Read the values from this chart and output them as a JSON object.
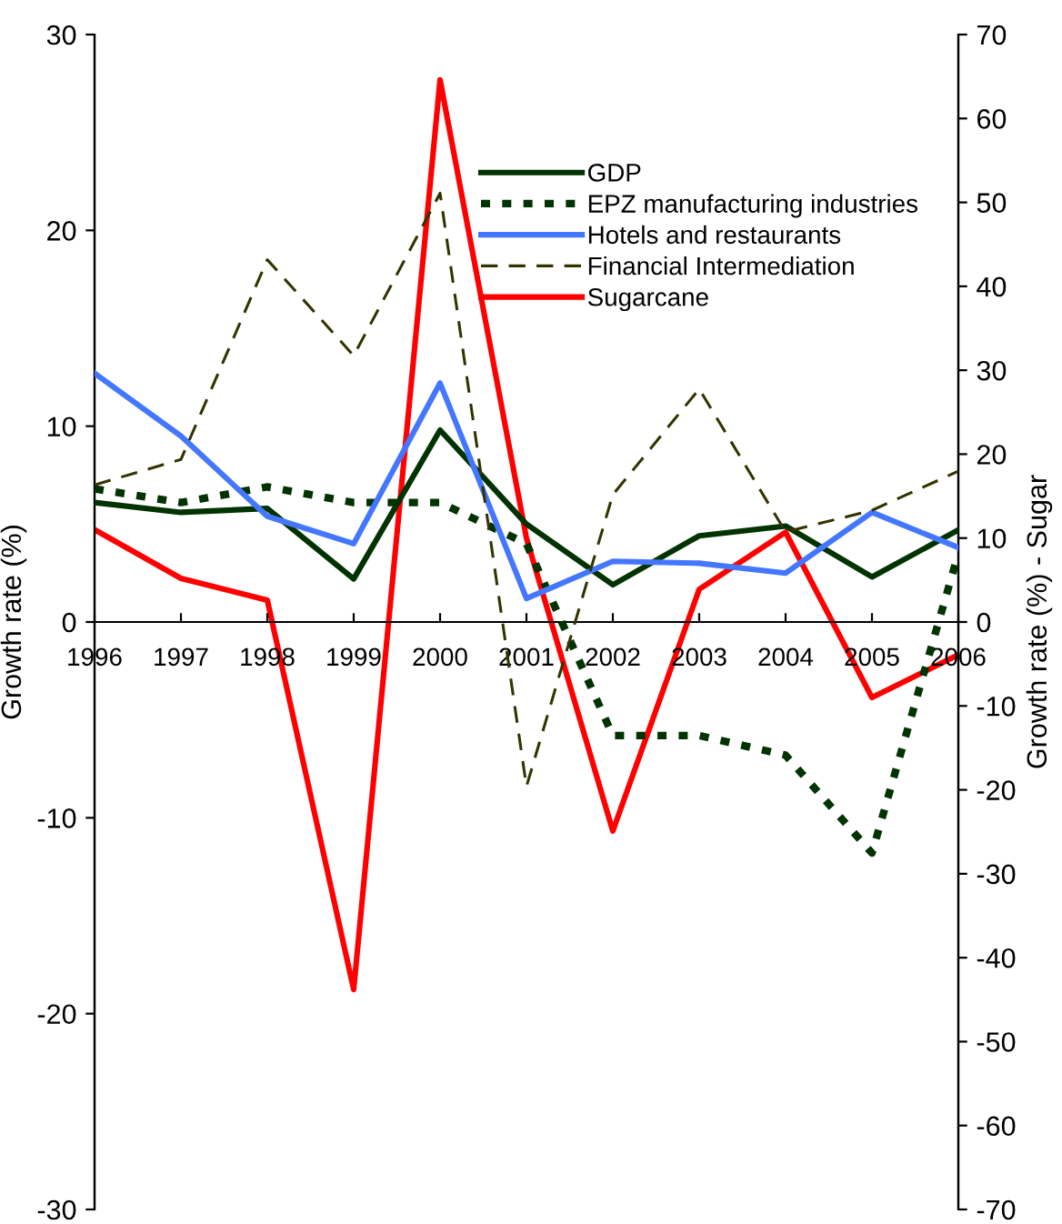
{
  "chart_data": {
    "type": "line",
    "ylabel": "Growth rate (%)",
    "y2label": "Growth rate (%) - Sugar",
    "x": [
      1996,
      1997,
      1998,
      1999,
      2000,
      2001,
      2002,
      2003,
      2004,
      2005,
      2006
    ],
    "xlim": [
      1996,
      2006
    ],
    "xticks": [
      1996,
      1997,
      1998,
      1999,
      2000,
      2001,
      2002,
      2003,
      2004,
      2005,
      2006
    ],
    "ylim": [
      -30,
      30
    ],
    "yticks": [
      -30,
      -20,
      -10,
      0,
      10,
      20,
      30
    ],
    "y2lim": [
      -70,
      70
    ],
    "y2ticks": [
      -70,
      -60,
      -50,
      -40,
      -30,
      -20,
      -10,
      0,
      10,
      20,
      30,
      40,
      50,
      60,
      70
    ],
    "grid": false,
    "legend": "top right",
    "marker": "none",
    "series": [
      {
        "name": "GDP",
        "color": "#003300",
        "line_style": "solid",
        "values": [
          6.1,
          5.6,
          5.8,
          2.2,
          9.8,
          5.0,
          1.9,
          4.4,
          4.9,
          2.3,
          4.7
        ]
      },
      {
        "name": "EPZ manufacturing industries",
        "color": "#003300",
        "line_style": "dotted",
        "values": [
          6.8,
          6.1,
          6.9,
          6.1,
          6.1,
          4.0,
          -5.8,
          -5.8,
          -6.8,
          -11.8,
          3.5
        ]
      },
      {
        "name": "Hotels and restaurants",
        "color": "#4477ff",
        "line_style": "solid",
        "values": [
          12.7,
          9.5,
          5.4,
          4.0,
          12.2,
          1.2,
          3.1,
          3.0,
          2.5,
          5.6,
          3.8
        ]
      },
      {
        "name": "Financial Intermediation",
        "color": "#333300",
        "line_style": "dashed",
        "values": [
          7.0,
          8.3,
          18.5,
          13.6,
          21.9,
          -8.4,
          6.5,
          11.9,
          4.6,
          5.7,
          7.7
        ]
      },
      {
        "name": "Sugarcane",
        "color": "#ff0000",
        "line_style": "solid",
        "axis": "y2",
        "values": [
          11.0,
          5.2,
          2.6,
          -43.8,
          64.6,
          10.0,
          -24.9,
          3.9,
          10.7,
          -9.0,
          -3.9
        ]
      }
    ]
  }
}
